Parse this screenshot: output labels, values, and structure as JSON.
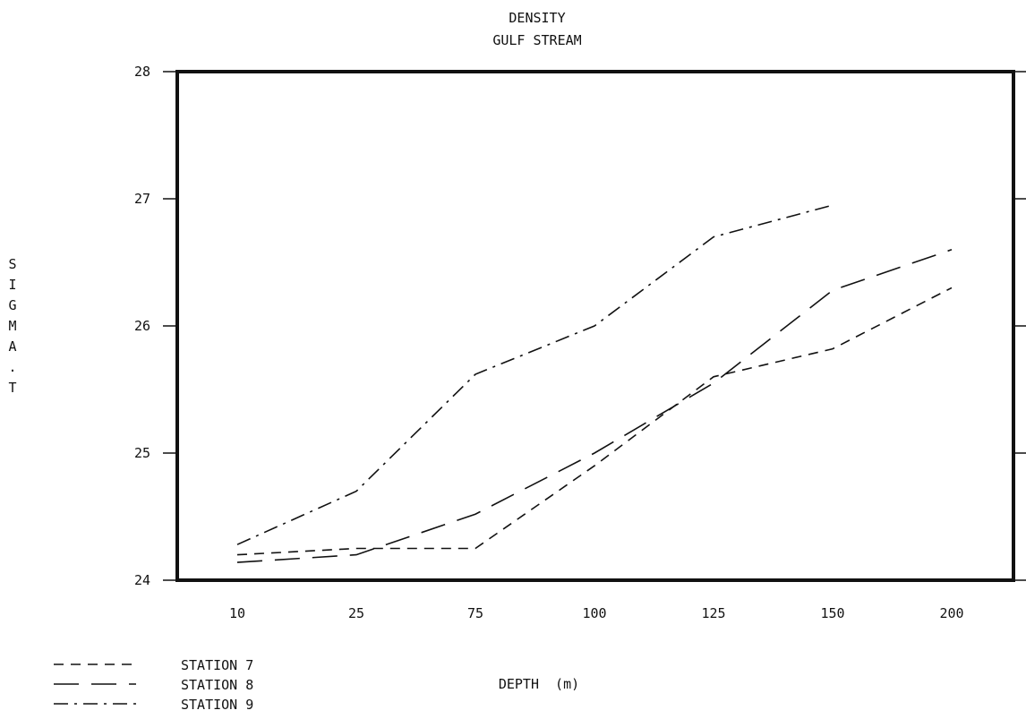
{
  "chart_data": {
    "type": "line",
    "title": "DENSITY",
    "subtitle": "GULF STREAM",
    "xlabel": "DEPTH  (m)",
    "ylabel": "SIGMA.T",
    "categories": [
      "10",
      "25",
      "75",
      "100",
      "125",
      "150",
      "200"
    ],
    "yticks": [
      "24",
      "25",
      "26",
      "27",
      "28"
    ],
    "ylim": [
      24,
      28
    ],
    "grid": false,
    "legend_position": "bottom-left",
    "series": [
      {
        "name": "STATION 7",
        "dash": "short-dash",
        "values": [
          24.2,
          24.25,
          24.25,
          24.9,
          25.6,
          25.82,
          26.3
        ]
      },
      {
        "name": "STATION 8",
        "dash": "long-dash",
        "values": [
          24.14,
          24.2,
          24.52,
          25.0,
          25.55,
          26.28,
          26.6
        ]
      },
      {
        "name": "STATION 9",
        "dash": "dash-dot",
        "values": [
          24.28,
          24.7,
          25.62,
          26.0,
          26.7,
          26.95,
          null
        ]
      }
    ]
  }
}
